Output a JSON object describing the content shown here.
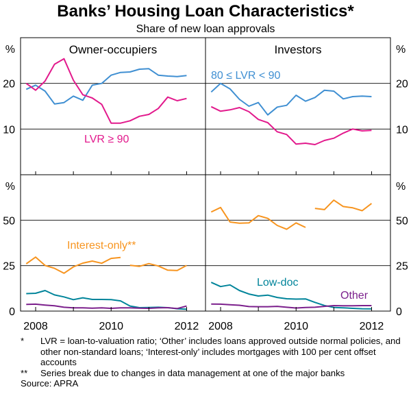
{
  "chart_data": {
    "type": "line",
    "title": "Banks’ Housing Loan Characteristics*",
    "subtitle": "Share of new loan approvals",
    "unit_label": "%",
    "x_ticks": [
      "2008",
      "2010",
      "2012"
    ],
    "x_range": [
      2007.6,
      2012.5
    ],
    "x_tick_values": [
      2008,
      2010,
      2012
    ],
    "panels": [
      {
        "id": "owner-top",
        "title": "Owner-occupiers",
        "ylim": [
          0,
          30
        ],
        "y_ticks": [
          10,
          20
        ],
        "series": [
          {
            "name": "80 ≤ LVR < 90",
            "color": "#3f8fd2",
            "label": "",
            "x": [
              2007.75,
              2008.0,
              2008.25,
              2008.5,
              2008.75,
              2009.0,
              2009.25,
              2009.5,
              2009.75,
              2010.0,
              2010.25,
              2010.5,
              2010.75,
              2011.0,
              2011.25,
              2011.5,
              2011.75,
              2012.0
            ],
            "y": [
              18.7,
              19.6,
              18.3,
              15.5,
              15.8,
              17.2,
              16.3,
              19.6,
              20.0,
              21.8,
              22.4,
              22.5,
              23.1,
              23.2,
              21.8,
              21.6,
              21.5,
              21.7
            ]
          },
          {
            "name": "LVR ≥ 90",
            "color": "#e2198c",
            "label": "LVR ≥ 90",
            "x": [
              2007.75,
              2008.0,
              2008.25,
              2008.5,
              2008.75,
              2009.0,
              2009.25,
              2009.5,
              2009.75,
              2010.0,
              2010.25,
              2010.5,
              2010.75,
              2011.0,
              2011.25,
              2011.5,
              2011.75,
              2012.0
            ],
            "y": [
              20.0,
              18.5,
              20.5,
              24.2,
              25.4,
              20.7,
              17.5,
              16.8,
              15.4,
              11.3,
              11.3,
              11.8,
              12.8,
              13.2,
              14.5,
              17.0,
              16.2,
              16.7
            ]
          }
        ]
      },
      {
        "id": "investors-top",
        "title": "Investors",
        "ylim": [
          0,
          30
        ],
        "y_ticks": [
          10,
          20
        ],
        "series": [
          {
            "name": "80 ≤ LVR < 90",
            "color": "#3f8fd2",
            "label": "80 ≤ LVR < 90",
            "x": [
              2007.75,
              2008.0,
              2008.25,
              2008.5,
              2008.75,
              2009.0,
              2009.25,
              2009.5,
              2009.75,
              2010.0,
              2010.25,
              2010.5,
              2010.75,
              2011.0,
              2011.25,
              2011.5,
              2011.75,
              2012.0
            ],
            "y": [
              18.1,
              20.0,
              18.8,
              16.5,
              15.0,
              15.8,
              13.1,
              14.8,
              15.2,
              17.4,
              16.1,
              16.9,
              18.5,
              18.3,
              16.6,
              17.1,
              17.2,
              17.1
            ]
          },
          {
            "name": "LVR ≥ 90",
            "color": "#e2198c",
            "label": "",
            "x": [
              2007.75,
              2008.0,
              2008.25,
              2008.5,
              2008.75,
              2009.0,
              2009.25,
              2009.5,
              2009.75,
              2010.0,
              2010.25,
              2010.5,
              2010.75,
              2011.0,
              2011.25,
              2011.5,
              2011.75,
              2012.0
            ],
            "y": [
              14.9,
              13.9,
              14.2,
              14.7,
              13.8,
              12.1,
              11.4,
              9.4,
              8.8,
              6.7,
              6.9,
              6.6,
              7.5,
              8.0,
              9.1,
              10.0,
              9.6,
              9.7
            ]
          }
        ]
      },
      {
        "id": "owner-bottom",
        "title": "",
        "ylim": [
          0,
          75
        ],
        "y_ticks": [
          0,
          25,
          50
        ],
        "series": [
          {
            "name": "Interest-only**",
            "color": "#f7941e",
            "label": "Interest-only**",
            "x": [
              2007.75,
              2008.0,
              2008.25,
              2008.5,
              2008.75,
              2009.0,
              2009.25,
              2009.5,
              2009.75,
              2010.0,
              2010.25,
              null,
              2010.5,
              2010.75,
              2011.0,
              2011.25,
              2011.5,
              2011.75,
              2012.0
            ],
            "y": [
              26.0,
              29.7,
              25.1,
              23.5,
              20.8,
              24.3,
              26.4,
              27.5,
              26.3,
              29.0,
              29.5,
              null,
              25.2,
              24.6,
              26.1,
              24.8,
              22.5,
              22.3,
              25.1
            ]
          },
          {
            "name": "Low-doc",
            "color": "#00849a",
            "label": "",
            "x": [
              2007.75,
              2008.0,
              2008.25,
              2008.5,
              2008.75,
              2009.0,
              2009.25,
              2009.5,
              2009.75,
              2010.0,
              2010.25,
              2010.5,
              2010.75,
              2011.0,
              2011.25,
              2011.5,
              2011.75,
              2012.0
            ],
            "y": [
              9.6,
              9.8,
              11.3,
              8.9,
              7.8,
              6.3,
              7.3,
              6.4,
              6.4,
              6.3,
              5.6,
              2.8,
              1.9,
              2.0,
              2.1,
              1.9,
              1.3,
              1.0
            ]
          },
          {
            "name": "Other",
            "color": "#7b1f8c",
            "label": "",
            "x": [
              2007.75,
              2008.0,
              2008.25,
              2008.5,
              2008.75,
              2009.0,
              2009.25,
              2009.5,
              2009.75,
              2010.0,
              2010.25,
              2010.5,
              2010.75,
              2011.0,
              2011.25,
              2011.5,
              2011.75,
              2012.0
            ],
            "y": [
              3.7,
              3.8,
              3.3,
              2.9,
              2.1,
              1.8,
              1.8,
              1.6,
              1.8,
              1.5,
              1.8,
              1.8,
              1.6,
              1.5,
              1.8,
              1.9,
              1.4,
              2.8
            ]
          }
        ]
      },
      {
        "id": "investors-bottom",
        "title": "",
        "ylim": [
          0,
          75
        ],
        "y_ticks": [
          0,
          25,
          50
        ],
        "series": [
          {
            "name": "Interest-only**",
            "color": "#f7941e",
            "label": "",
            "x": [
              2007.75,
              2008.0,
              2008.25,
              2008.5,
              2008.75,
              2009.0,
              2009.25,
              2009.5,
              2009.75,
              2010.0,
              2010.25,
              null,
              2010.5,
              2010.75,
              2011.0,
              2011.25,
              2011.5,
              2011.75,
              2012.0
            ],
            "y": [
              54.5,
              57.0,
              49.0,
              48.3,
              48.5,
              52.5,
              51.0,
              47.1,
              45.0,
              48.5,
              46.0,
              null,
              56.5,
              55.8,
              61.0,
              57.5,
              56.8,
              55.2,
              59.2
            ]
          },
          {
            "name": "Low-doc",
            "color": "#00849a",
            "label": "Low-doc",
            "x": [
              2007.75,
              2008.0,
              2008.25,
              2008.5,
              2008.75,
              2009.0,
              2009.25,
              2009.5,
              2009.75,
              2010.0,
              2010.25,
              2010.5,
              2010.75,
              2011.0,
              2011.25,
              2011.5,
              2011.75,
              2012.0
            ],
            "y": [
              15.8,
              13.5,
              14.4,
              11.3,
              9.4,
              8.3,
              8.8,
              7.5,
              6.8,
              6.6,
              6.7,
              4.8,
              3.1,
              2.0,
              1.8,
              1.5,
              1.3,
              1.2
            ]
          },
          {
            "name": "Other",
            "color": "#7b1f8c",
            "label": "Other",
            "x": [
              2007.75,
              2008.0,
              2008.25,
              2008.5,
              2008.75,
              2009.0,
              2009.25,
              2009.5,
              2009.75,
              2010.0,
              2010.25,
              2010.5,
              2010.75,
              2011.0,
              2011.25,
              2011.5,
              2011.75,
              2012.0
            ],
            "y": [
              3.9,
              3.8,
              3.5,
              3.2,
              2.5,
              2.4,
              2.4,
              2.6,
              2.1,
              1.7,
              2.0,
              2.1,
              2.6,
              3.0,
              2.9,
              2.9,
              3.0,
              3.0
            ]
          }
        ]
      }
    ]
  },
  "notes": [
    {
      "mark": "*",
      "text": "LVR = loan-to-valuation ratio; ‘Other’ includes loans approved outside normal policies, and other non-standard loans; ‘Interest-only’ includes mortgages with 100 per cent offset accounts"
    },
    {
      "mark": "**",
      "text": "Series break due to changes in data management at one of the major banks"
    }
  ],
  "source": "Source: APRA"
}
